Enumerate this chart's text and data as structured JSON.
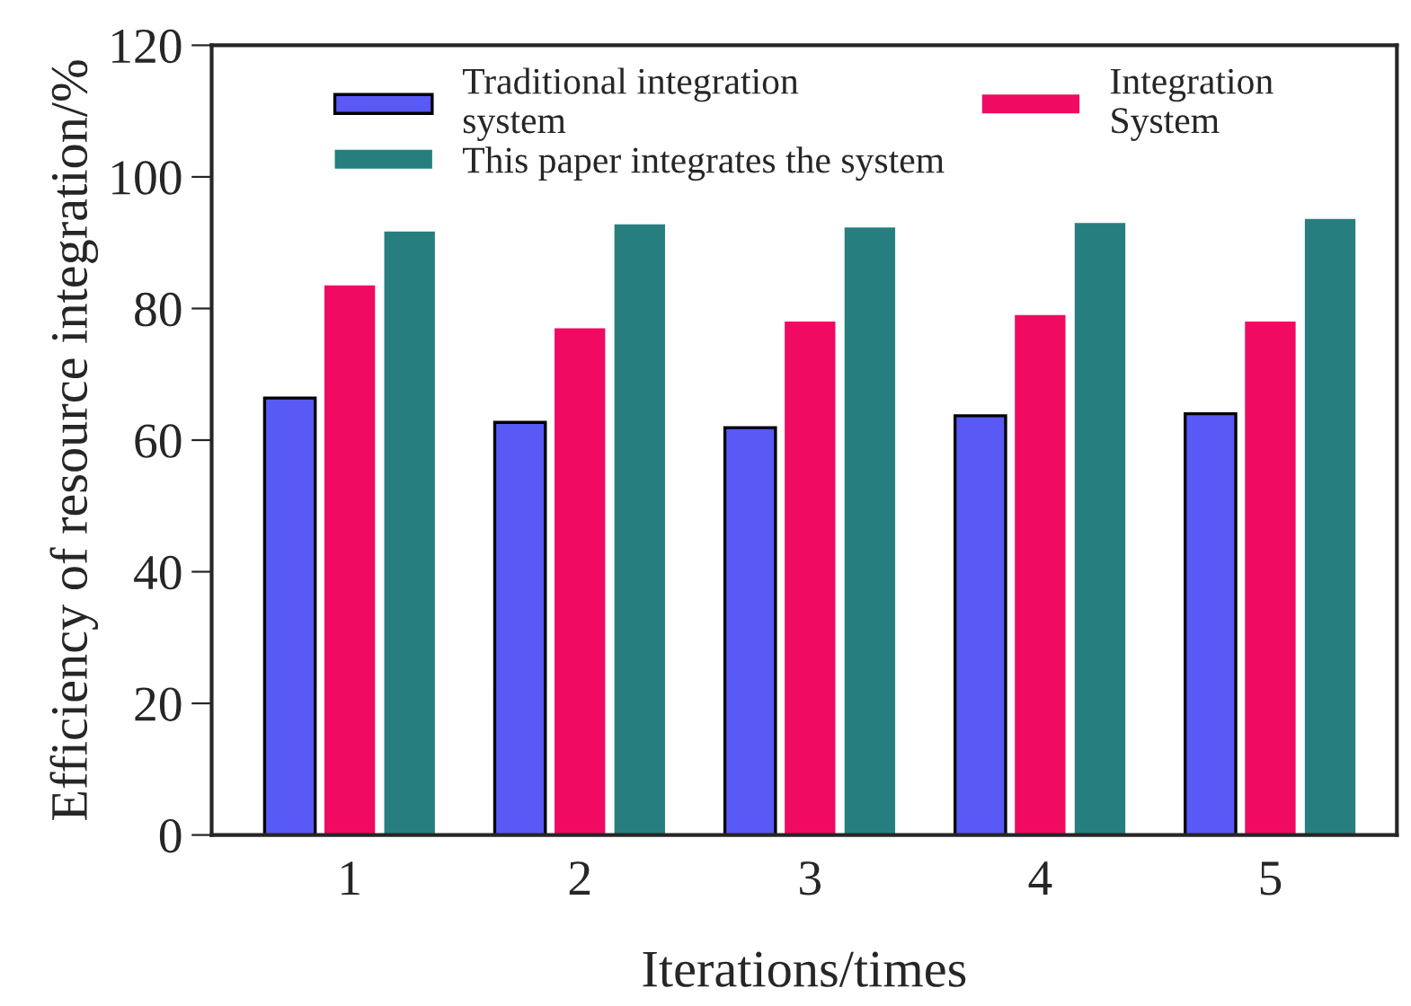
{
  "chart_data": {
    "type": "bar",
    "xlabel": "Iterations/times",
    "ylabel": "Efficiency of resource integration/%",
    "categories": [
      "1",
      "2",
      "3",
      "4",
      "5"
    ],
    "series": [
      {
        "name": "Traditional integration\nsystem",
        "color": "#5959f5",
        "values": [
          66.4,
          62.7,
          61.9,
          63.7,
          64
        ]
      },
      {
        "name": "Integration\nSystem",
        "color": "#f00a62",
        "values": [
          83.5,
          77,
          78,
          79,
          78
        ]
      },
      {
        "name": "This paper integrates the system",
        "color": "#267f7e",
        "values": [
          91.7,
          92.8,
          92.3,
          93,
          93.6
        ]
      }
    ],
    "ylim": [
      0,
      120
    ],
    "yticks": [
      0,
      20,
      40,
      60,
      80,
      100,
      120
    ],
    "grid": false,
    "legend": "top"
  }
}
